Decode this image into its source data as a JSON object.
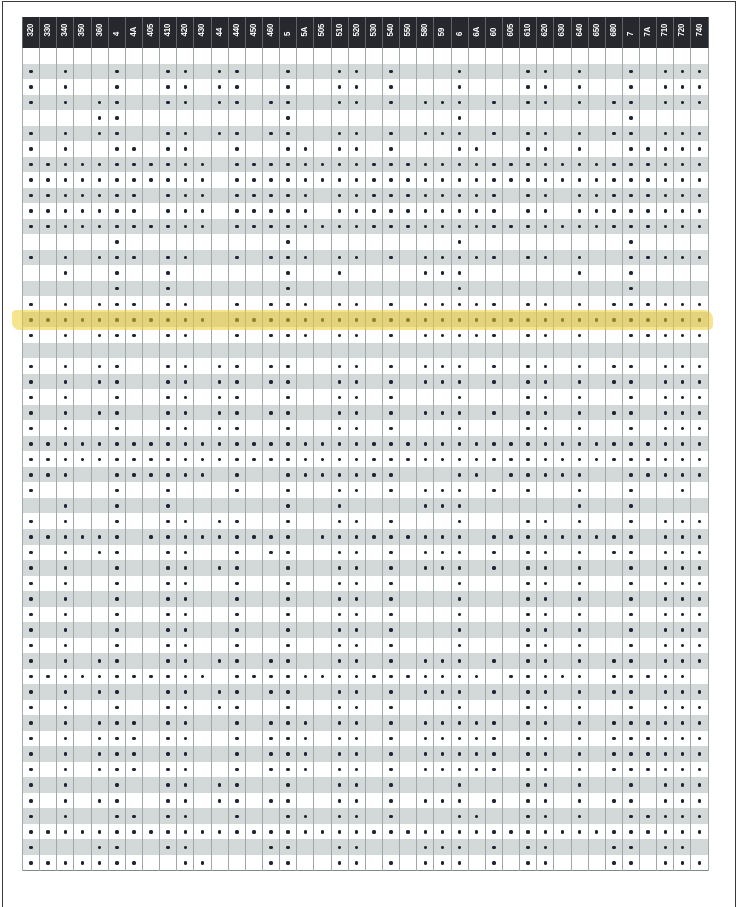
{
  "columns": [
    "320",
    "330",
    "340",
    "350",
    "360",
    "4",
    "4A",
    "405",
    "410",
    "420",
    "430",
    "44",
    "440",
    "450",
    "460",
    "5",
    "5A",
    "505",
    "510",
    "520",
    "530",
    "540",
    "550",
    "580",
    "59",
    "6",
    "6A",
    "60",
    "605",
    "610",
    "620",
    "630",
    "640",
    "650",
    "680",
    "7",
    "7A",
    "710",
    "720",
    "740"
  ],
  "highlighted_row": 17,
  "colors": {
    "header": "#26282d",
    "stripe": "#d3d9d9",
    "dot": "#1d2433",
    "highlight": "#f0cd32"
  },
  "rows": [
    "0000000000000000000000000000000000000000",
    "1010010011011001001101000100011010010111",
    "1010010011011001001101000100011010010111",
    "1010110011011011001101011101011010110111",
    "0000110000000001000000000100000000010000",
    "1010110011011011001101011101011010110111",
    "1010011011001001101101000110011010011111",
    "1111111111101111111111111111111111111111",
    "1111111111101111111111111111111111111111",
    "1111111011101111101111111111011011111111",
    "1111111011101111101111111111011011111111",
    "1111111111101111111111111111111111111111",
    "0000010000000001000000000100000000010000",
    "1010111011001011101101011111011010011111",
    "0010010010000001001000011100000010010000",
    "0000010010000001000000000100000000010000",
    "1010111011001011101101011111011010111111",
    "1111111111101111111111111111111111111111",
    "1010111011001011101101011111011010011111",
    "0000000000000000000000000000000000000000",
    "1010110011011011001101011101011010110111",
    "1010110011011011001101011101011010110111",
    "1010010011011001001101000100011010010111",
    "1010110011011011001101011101011010110111",
    "1010010011011001001101000100011010010111",
    "1111111111111111111111111111111111111111",
    "1111111111111111111111111111111111111111",
    "1110011111101001111111000110111110011111",
    "1000010010001001001101011101010010010010",
    "0010010010000001001000011100000010010000",
    "1010010011011001001101000100011010010111",
    "1111110111111111011111111101111111110111",
    "1010110011001011001101011101011010110111",
    "1010010011011001001101011101011010010111",
    "1010010011001001001101000100011010010111",
    "1010010011001001001101000100011010010111",
    "1010010011001001001101000100011010010111",
    "1010010011001001001101000100011010010111",
    "1010010011001001001101000100011010010111",
    "1010110011011011001101011101011010110111",
    "1111111111101111111111111110111110111110",
    "1010110011011011001101011101011010110111",
    "1010010011011001001101000100011010010111",
    "1010111011001011101101011111011010111111",
    "1010111011001011101101011111011010111111",
    "1010111011001011101101011111011010111111",
    "1010111011001011101101011111011010111111",
    "1010010011011001001101000100011010010111",
    "1010110011011011001101011101011010110111",
    "1010011011001001101101000110011010011111",
    "1111111111111111111111111111111111111111",
    "1000110011000011001100011101011000110110",
    "1111111001100011001101011101011000110111"
  ]
}
